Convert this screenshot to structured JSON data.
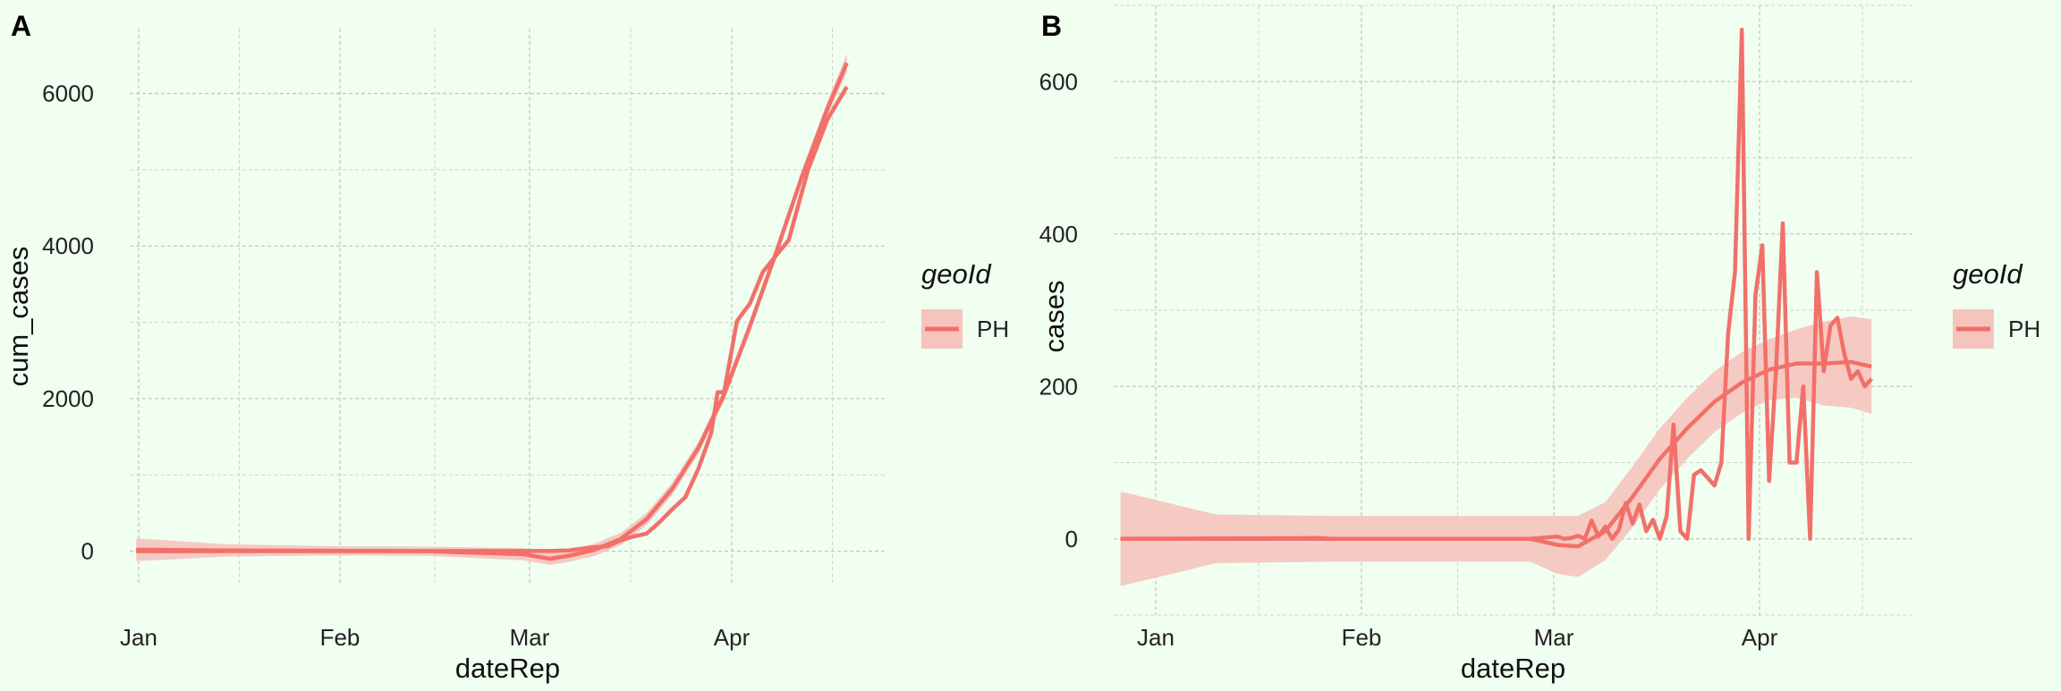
{
  "chart_data": [
    {
      "panel": "A",
      "type": "line",
      "xlabel": "dateRep",
      "ylabel": "cum_cases",
      "x_ticks": [
        "Jan",
        "Feb",
        "Mar",
        "Apr"
      ],
      "y_ticks": [
        "0",
        "2000",
        "4000",
        "6000"
      ],
      "xlim": [
        "2019-12-31",
        "2020-04-26"
      ],
      "ylim": [
        -450,
        6850
      ],
      "grid": true,
      "legend": {
        "title": "geoId",
        "entries": [
          "PH"
        ],
        "placement": "right"
      },
      "series": [
        {
          "name": "PH",
          "kind": "observed",
          "x": [
            "2020-01-01",
            "2020-01-30",
            "2020-02-01",
            "2020-03-01",
            "2020-03-05",
            "2020-03-08",
            "2020-03-10",
            "2020-03-12",
            "2020-03-14",
            "2020-03-16",
            "2020-03-18",
            "2020-03-20",
            "2020-03-22",
            "2020-03-24",
            "2020-03-26",
            "2020-03-28",
            "2020-03-30",
            "2020-03-31",
            "2020-04-01",
            "2020-04-03",
            "2020-04-05",
            "2020-04-07",
            "2020-04-09",
            "2020-04-11",
            "2020-04-14",
            "2020-04-17",
            "2020-04-20"
          ],
          "y": [
            0,
            1,
            1,
            3,
            3,
            10,
            33,
            52,
            64,
            142,
            193,
            230,
            380,
            552,
            707,
            1075,
            1546,
            2084,
            2084,
            3018,
            3246,
            3660,
            3870,
            4076,
            5000,
            5660,
            6087
          ]
        },
        {
          "name": "PH",
          "kind": "smooth",
          "x": [
            "2020-01-01",
            "2020-01-15",
            "2020-02-01",
            "2020-02-15",
            "2020-03-01",
            "2020-03-05",
            "2020-03-08",
            "2020-03-12",
            "2020-03-16",
            "2020-03-20",
            "2020-03-24",
            "2020-03-28",
            "2020-04-01",
            "2020-04-05",
            "2020-04-09",
            "2020-04-13",
            "2020-04-17",
            "2020-04-20"
          ],
          "y": [
            20,
            10,
            5,
            0,
            -40,
            -100,
            -60,
            20,
            160,
            420,
            820,
            1350,
            2050,
            2950,
            3900,
            4900,
            5800,
            6400
          ],
          "ci_half_width": [
            150,
            80,
            60,
            60,
            80,
            80,
            80,
            80,
            80,
            80,
            80,
            80,
            80,
            80,
            80,
            80,
            100,
            120
          ]
        }
      ]
    },
    {
      "panel": "B",
      "type": "line",
      "xlabel": "dateRep",
      "ylabel": "cases",
      "x_ticks": [
        "Jan",
        "Feb",
        "Mar",
        "Apr"
      ],
      "y_ticks": [
        "0",
        "200",
        "400",
        "600"
      ],
      "xlim": [
        "2019-12-31",
        "2020-04-26"
      ],
      "ylim": [
        -100,
        700
      ],
      "grid": true,
      "legend": {
        "title": "geoId",
        "entries": [
          "PH"
        ],
        "placement": "right"
      },
      "series": [
        {
          "name": "PH",
          "kind": "observed",
          "x": [
            "2020-01-01",
            "2020-01-30",
            "2020-02-01",
            "2020-03-01",
            "2020-03-05",
            "2020-03-06",
            "2020-03-07",
            "2020-03-08",
            "2020-03-09",
            "2020-03-10",
            "2020-03-11",
            "2020-03-12",
            "2020-03-13",
            "2020-03-14",
            "2020-03-15",
            "2020-03-16",
            "2020-03-17",
            "2020-03-18",
            "2020-03-19",
            "2020-03-20",
            "2020-03-21",
            "2020-03-22",
            "2020-03-23",
            "2020-03-24",
            "2020-03-25",
            "2020-03-26",
            "2020-03-27",
            "2020-03-28",
            "2020-03-29",
            "2020-03-30",
            "2020-03-31",
            "2020-04-01",
            "2020-04-02",
            "2020-04-03",
            "2020-04-04",
            "2020-04-05",
            "2020-04-06",
            "2020-04-07",
            "2020-04-08",
            "2020-04-09",
            "2020-04-10",
            "2020-04-11",
            "2020-04-12",
            "2020-04-13",
            "2020-04-14",
            "2020-04-15",
            "2020-04-16",
            "2020-04-17",
            "2020-04-18",
            "2020-04-19",
            "2020-04-20"
          ],
          "y": [
            0,
            1,
            0,
            0,
            3,
            0,
            1,
            4,
            0,
            24,
            3,
            16,
            0,
            12,
            47,
            20,
            45,
            10,
            25,
            0,
            30,
            150,
            10,
            0,
            84,
            90,
            80,
            70,
            100,
            270,
            350,
            668,
            0,
            320,
            385,
            76,
            220,
            414,
            100,
            100,
            200,
            0,
            350,
            220,
            280,
            290,
            243,
            210,
            220,
            200,
            210
          ]
        },
        {
          "name": "PH",
          "kind": "smooth",
          "x": [
            "2020-01-01",
            "2020-01-15",
            "2020-02-01",
            "2020-02-15",
            "2020-03-01",
            "2020-03-05",
            "2020-03-08",
            "2020-03-12",
            "2020-03-16",
            "2020-03-20",
            "2020-03-24",
            "2020-03-28",
            "2020-04-01",
            "2020-04-05",
            "2020-04-09",
            "2020-04-13",
            "2020-04-17",
            "2020-04-20"
          ],
          "y": [
            0,
            0,
            0,
            0,
            0,
            -8,
            -10,
            10,
            55,
            105,
            145,
            180,
            205,
            222,
            230,
            230,
            232,
            226
          ],
          "ci_half_width": [
            62,
            32,
            30,
            30,
            30,
            38,
            40,
            38,
            40,
            40,
            40,
            40,
            40,
            40,
            45,
            55,
            60,
            62
          ]
        }
      ]
    }
  ]
}
